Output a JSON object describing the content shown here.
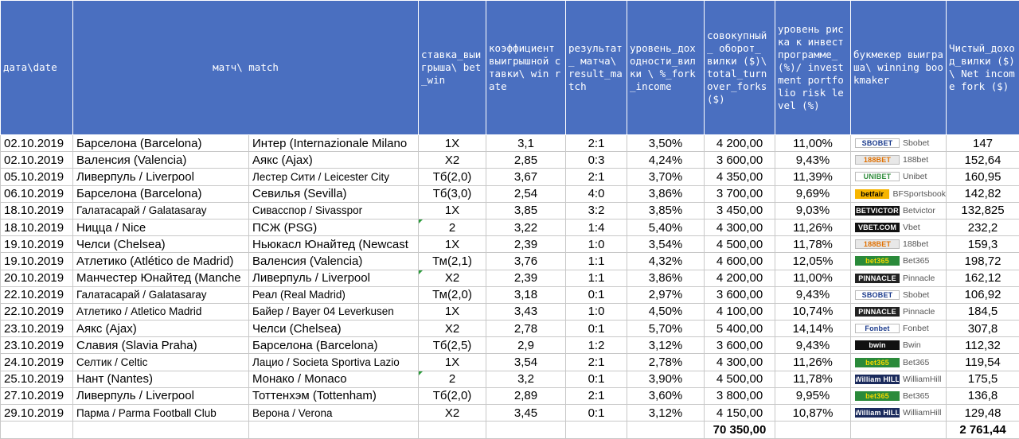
{
  "headers": {
    "date": "дата\\date",
    "match": "матч\\ match",
    "bet_win": "ставка_выигрыша\\ bet_win",
    "win_rate": "коэффициент выигрышной ставки\\ win rate",
    "result": "результат_ матча\\ result_match",
    "fork_income": "уровень_доходности_вилки \\ %_fork_income",
    "turnover": "совокупный_ оборот_ вилки ($)\\ total_turnover_forks ($)",
    "risk": "уровень риска к инвестпрограмме_(%)/ investment portfolio risk level (%)",
    "bookmaker": "букмекер выиграша\\ winning bookmaker",
    "net_income": "Чистый_доход_вилки ($) \\ Net income fork ($)"
  },
  "rows": [
    {
      "date": "02.10.2019",
      "team1": "Барселона (Barcelona)",
      "team2": "Интер (Internazionale Milano",
      "bet": "1X",
      "rate": "3,1",
      "result": "2:1",
      "fork": "3,50%",
      "turnover": "4 200,00",
      "risk": "11,00%",
      "bookmaker": "Sbobet",
      "logo": "SBOBET",
      "net": "147"
    },
    {
      "date": "02.10.2019",
      "team1": "Валенсия (Valencia)",
      "team2": "Аякс (Ajax)",
      "bet": "X2",
      "rate": "2,85",
      "result": "0:3",
      "fork": "4,24%",
      "turnover": "3 600,00",
      "risk": "9,43%",
      "bookmaker": "188bet",
      "logo": "188BET",
      "net": "152,64"
    },
    {
      "date": "05.10.2019",
      "team1": "Ливерпуль / Liverpool",
      "team2": "Лестер Сити / Leicester City",
      "bet": "Тб(2,0)",
      "rate": "3,67",
      "result": "2:1",
      "fork": "3,70%",
      "turnover": "4 350,00",
      "risk": "11,39%",
      "bookmaker": "Unibet",
      "logo": "UNIBET",
      "net": "160,95"
    },
    {
      "date": "06.10.2019",
      "team1": "Барселона (Barcelona)",
      "team2": "Севилья (Sevilla)",
      "bet": "Тб(3,0)",
      "rate": "2,54",
      "result": "4:0",
      "fork": "3,86%",
      "turnover": "3 700,00",
      "risk": "9,69%",
      "bookmaker": "BFSportsbook",
      "logo": "betfair",
      "net": "142,82"
    },
    {
      "date": "18.10.2019",
      "team1": "Галатасарай / Galatasaray",
      "team2": "Сивасспор / Sivasspor",
      "bet": "1X",
      "rate": "3,85",
      "result": "3:2",
      "fork": "3,85%",
      "turnover": "3 450,00",
      "risk": "9,03%",
      "bookmaker": "Betvictor",
      "logo": "BETVICTOR",
      "net": "132,825"
    },
    {
      "date": "18.10.2019",
      "team1": "Ницца / Nice",
      "team2": "ПСЖ (PSG)",
      "bet": "2",
      "rate": "3,22",
      "result": "1:4",
      "fork": "5,40%",
      "turnover": "4 300,00",
      "risk": "11,26%",
      "bookmaker": "Vbet",
      "logo": "VBET.COM",
      "net": "232,2"
    },
    {
      "date": "19.10.2019",
      "team1": "Челси (Chelsea)",
      "team2": "Ньюкасл Юнайтед (Newcast",
      "bet": "1X",
      "rate": "2,39",
      "result": "1:0",
      "fork": "3,54%",
      "turnover": "4 500,00",
      "risk": "11,78%",
      "bookmaker": "188bet",
      "logo": "188BET",
      "net": "159,3"
    },
    {
      "date": "19.10.2019",
      "team1": "Атлетико (Atlético de Madrid)",
      "team2": "Валенсия (Valencia)",
      "bet": "Тм(2,1)",
      "rate": "3,76",
      "result": "1:1",
      "fork": "4,32%",
      "turnover": "4 600,00",
      "risk": "12,05%",
      "bookmaker": "Bet365",
      "logo": "bet365",
      "net": "198,72"
    },
    {
      "date": "20.10.2019",
      "team1": "Манчестер Юнайтед (Manche",
      "team2": "Ливерпуль / Liverpool",
      "bet": "X2",
      "rate": "2,39",
      "result": "1:1",
      "fork": "3,86%",
      "turnover": "4 200,00",
      "risk": "11,00%",
      "bookmaker": "Pinnacle",
      "logo": "PINNACLE",
      "net": "162,12"
    },
    {
      "date": "22.10.2019",
      "team1": "Галатасарай / Galatasaray",
      "team2": "Реал (Real Madrid)",
      "bet": "Тм(2,0)",
      "rate": "3,18",
      "result": "0:1",
      "fork": "2,97%",
      "turnover": "3 600,00",
      "risk": "9,43%",
      "bookmaker": "Sbobet",
      "logo": "SBOBET",
      "net": "106,92"
    },
    {
      "date": "22.10.2019",
      "team1": "Атлетико / Atletico Madrid",
      "team2": "Байер / Bayer 04 Leverkusen",
      "bet": "1X",
      "rate": "3,43",
      "result": "1:0",
      "fork": "4,50%",
      "turnover": "4 100,00",
      "risk": "10,74%",
      "bookmaker": "Pinnacle",
      "logo": "PINNACLE",
      "net": "184,5"
    },
    {
      "date": "23.10.2019",
      "team1": "Аякс (Ajax)",
      "team2": "Челси (Chelsea)",
      "bet": "X2",
      "rate": "2,78",
      "result": "0:1",
      "fork": "5,70%",
      "turnover": "5 400,00",
      "risk": "14,14%",
      "bookmaker": "Fonbet",
      "logo": "Fonbet",
      "net": "307,8"
    },
    {
      "date": "23.10.2019",
      "team1": "Славия (Slavia Praha)",
      "team2": "Барселона (Barcelona)",
      "bet": "Тб(2,5)",
      "rate": "2,9",
      "result": "1:2",
      "fork": "3,12%",
      "turnover": "3 600,00",
      "risk": "9,43%",
      "bookmaker": "Bwin",
      "logo": "bwin",
      "net": "112,32"
    },
    {
      "date": "24.10.2019",
      "team1": "Селтик / Celtic",
      "team2": "Лацио / Societa Sportiva Lazio",
      "bet": "1X",
      "rate": "3,54",
      "result": "2:1",
      "fork": "2,78%",
      "turnover": "4 300,00",
      "risk": "11,26%",
      "bookmaker": "Bet365",
      "logo": "bet365",
      "net": "119,54"
    },
    {
      "date": "25.10.2019",
      "team1": "Нант (Nantes)",
      "team2": "Монако / Monaco",
      "bet": "2",
      "rate": "3,2",
      "result": "0:1",
      "fork": "3,90%",
      "turnover": "4 500,00",
      "risk": "11,78%",
      "bookmaker": "WilliamHill",
      "logo": "William HILL",
      "net": "175,5"
    },
    {
      "date": "27.10.2019",
      "team1": "Ливерпуль / Liverpool",
      "team2": "Тоттенхэм (Tottenham)",
      "bet": "Тб(2,0)",
      "rate": "2,89",
      "result": "2:1",
      "fork": "3,60%",
      "turnover": "3 800,00",
      "risk": "9,95%",
      "bookmaker": "Bet365",
      "logo": "bet365",
      "net": "136,8"
    },
    {
      "date": "29.10.2019",
      "team1": "Парма / Parma Football Club",
      "team2": "Верона / Verona",
      "bet": "X2",
      "rate": "3,45",
      "result": "0:1",
      "fork": "3,12%",
      "turnover": "4 150,00",
      "risk": "10,87%",
      "bookmaker": "WilliamHill",
      "logo": "William HILL",
      "net": "129,48"
    }
  ],
  "totals": {
    "turnover": "70 350,00",
    "net": "2 761,44"
  },
  "logo_colors": {
    "SBOBET": {
      "bg": "#ffffff",
      "fg": "#1a3a8c",
      "border": "#bbbbbb"
    },
    "188BET": {
      "bg": "#e8e8e8",
      "fg": "#e07000",
      "border": "#bbbbbb"
    },
    "UNIBET": {
      "bg": "#ffffff",
      "fg": "#2e8b3a",
      "border": "#bbbbbb"
    },
    "betfair": {
      "bg": "#f7b500",
      "fg": "#000000",
      "border": "#f7b500"
    },
    "BETVICTOR": {
      "bg": "#111111",
      "fg": "#ffffff",
      "border": "#111111"
    },
    "VBET.COM": {
      "bg": "#111111",
      "fg": "#ffffff",
      "border": "#111111"
    },
    "bet365": {
      "bg": "#2a8a3a",
      "fg": "#f5d800",
      "border": "#2a8a3a"
    },
    "PINNACLE": {
      "bg": "#222222",
      "fg": "#ffffff",
      "border": "#222222"
    },
    "Fonbet": {
      "bg": "#ffffff",
      "fg": "#1a3a8c",
      "border": "#bbbbbb"
    },
    "bwin": {
      "bg": "#111111",
      "fg": "#ffffff",
      "border": "#111111"
    },
    "William HILL": {
      "bg": "#1a2a5c",
      "fg": "#ffffff",
      "border": "#1a2a5c"
    }
  }
}
